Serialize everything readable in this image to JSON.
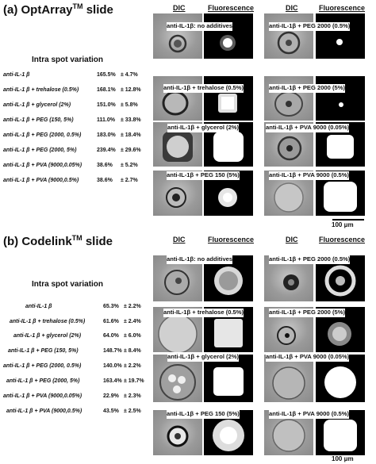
{
  "panel_a": {
    "title": "(a) OptArray",
    "title_sup": "TM",
    "title_tail": " slide",
    "heading": "Intra spot variation",
    "rows": [
      {
        "label": "anti-IL-1 β",
        "mean": "165.5%",
        "sd": "± 4.7%"
      },
      {
        "label": "anti-IL-1 β + trehalose (0.5%)",
        "mean": "168.1%",
        "sd": "± 12.8%"
      },
      {
        "label": "anti-IL-1 β + glycerol (2%)",
        "mean": "151.0%",
        "sd": "± 5.8%"
      },
      {
        "label": "anti-IL-1 β + PEG (150, 5%)",
        "mean": "111.0%",
        "sd": "± 33.8%"
      },
      {
        "label": "anti-IL-1 β + PEG (2000, 0.5%)",
        "mean": "183.0%",
        "sd": "± 18.4%"
      },
      {
        "label": "anti-IL-1 β + PEG (2000, 5%)",
        "mean": "239.4%",
        "sd": "± 29.6%"
      },
      {
        "label": "anti-IL-1 β + PVA (9000,0.05%)",
        "mean": "38.6%",
        "sd": "± 5.2%"
      },
      {
        "label": "anti-IL-1 β + PVA (9000,0.5%)",
        "mean": "38.6%",
        "sd": "± 2.7%"
      }
    ],
    "col_dic": "DIC",
    "col_fluor": "Fluorescence",
    "captions": [
      "anti-IL-1β: no additives",
      "anti-IL-1β + PEG 2000 (0.5%)",
      "anti-IL-1β + trehalose (0.5%)",
      "anti-IL-1β + PEG 2000 (5%)",
      "anti-IL-1β + glycerol (2%)",
      "anti-IL-1β + PVA 9000 (0.05%)",
      "anti-IL-1β + PEG 150 (5%)",
      "anti-IL-1β + PVA 9000 (0.5%)"
    ],
    "scale": "100 μm"
  },
  "panel_b": {
    "title": "(b) Codelink",
    "title_sup": "TM",
    "title_tail": " slide",
    "heading": "Intra spot variation",
    "rows": [
      {
        "label": "anti-IL-1 β",
        "mean": "65.3%",
        "sd": "± 2.2%"
      },
      {
        "label": "anti-IL-1 β + trehalose (0.5%)",
        "mean": "61.6%",
        "sd": "± 2.4%"
      },
      {
        "label": "anti-IL-1 β + glycerol (2%)",
        "mean": "64.0%",
        "sd": "± 6.0%"
      },
      {
        "label": "anti-IL-1 β + PEG (150, 5%)",
        "mean": "148.7%",
        "sd": "± 8.4%"
      },
      {
        "label": "anti-IL-1 β + PEG (2000, 0.5%)",
        "mean": "140.0%",
        "sd": "± 2.2%"
      },
      {
        "label": "anti-IL-1 β + PEG (2000, 5%)",
        "mean": "163.4%",
        "sd": "± 19.7%"
      },
      {
        "label": "anti-IL-1 β + PVA (9000,0.05%)",
        "mean": "22.9%",
        "sd": "± 2.3%"
      },
      {
        "label": "anti-IL-1 β + PVA (9000,0.5%)",
        "mean": "43.5%",
        "sd": "± 2.5%"
      }
    ],
    "col_dic": "DIC",
    "col_fluor": "Fluorescence",
    "captions": [
      "anti-IL-1β: no additives",
      "anti-IL-1β + PEG 2000 (0.5%)",
      "anti-IL-1β + trehalose (0.5%)",
      "anti-IL-1β + PEG 2000 (5%)",
      "anti-IL-1β + glycerol (2%)",
      "anti-IL-1β + PVA 9000 (0.05%)",
      "anti-IL-1β + PEG 150 (5%)",
      "anti-IL-1β + PVA 9000 (0.5%)"
    ],
    "scale": "100 μm"
  }
}
